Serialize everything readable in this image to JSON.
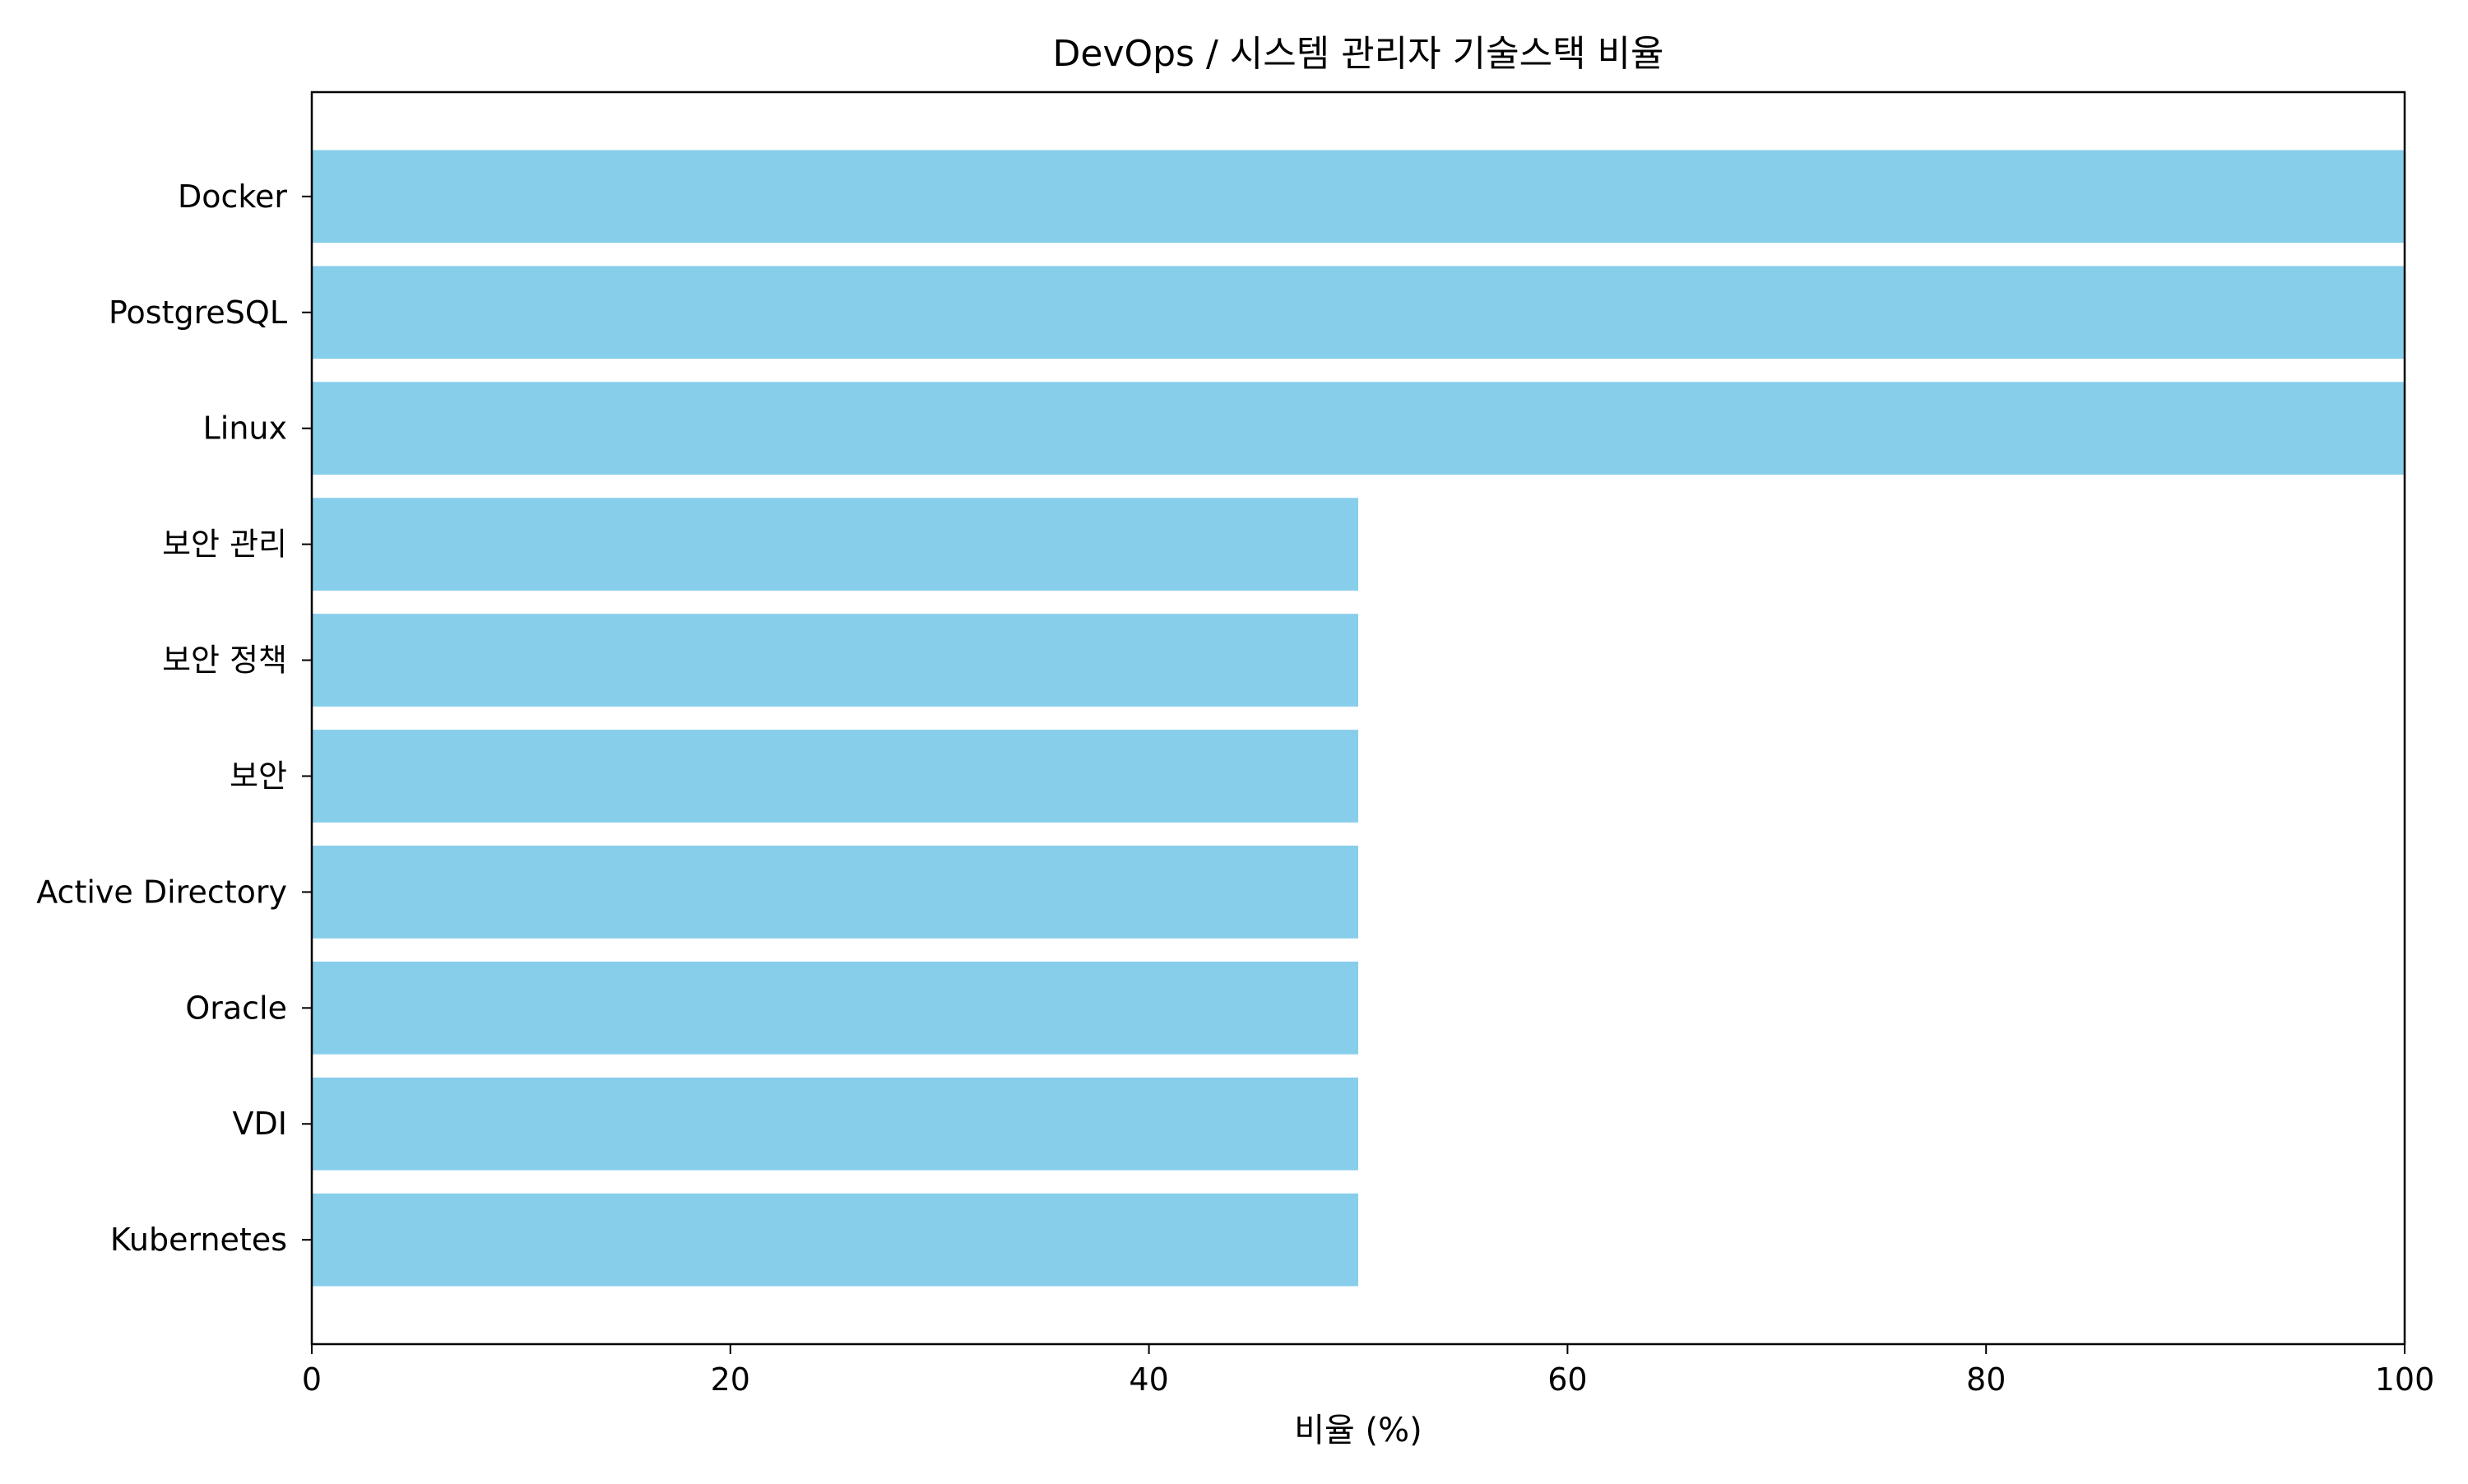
{
  "chart_data": {
    "type": "bar",
    "orientation": "horizontal",
    "title": "DevOps / 시스템 관리자 기술스택 비율",
    "xlabel": "비율 (%)",
    "ylabel": "",
    "xlim": [
      0,
      100
    ],
    "xticks": [
      0,
      20,
      40,
      60,
      80,
      100
    ],
    "categories": [
      "Docker",
      "PostgreSQL",
      "Linux",
      "보안 관리",
      "보안 정책",
      "보안",
      "Active Directory",
      "Oracle",
      "VDI",
      "Kubernetes"
    ],
    "values": [
      100,
      100,
      100,
      50,
      50,
      50,
      50,
      50,
      50,
      50
    ],
    "bar_color": "#87CEEB",
    "grid": false,
    "legend": "none"
  }
}
